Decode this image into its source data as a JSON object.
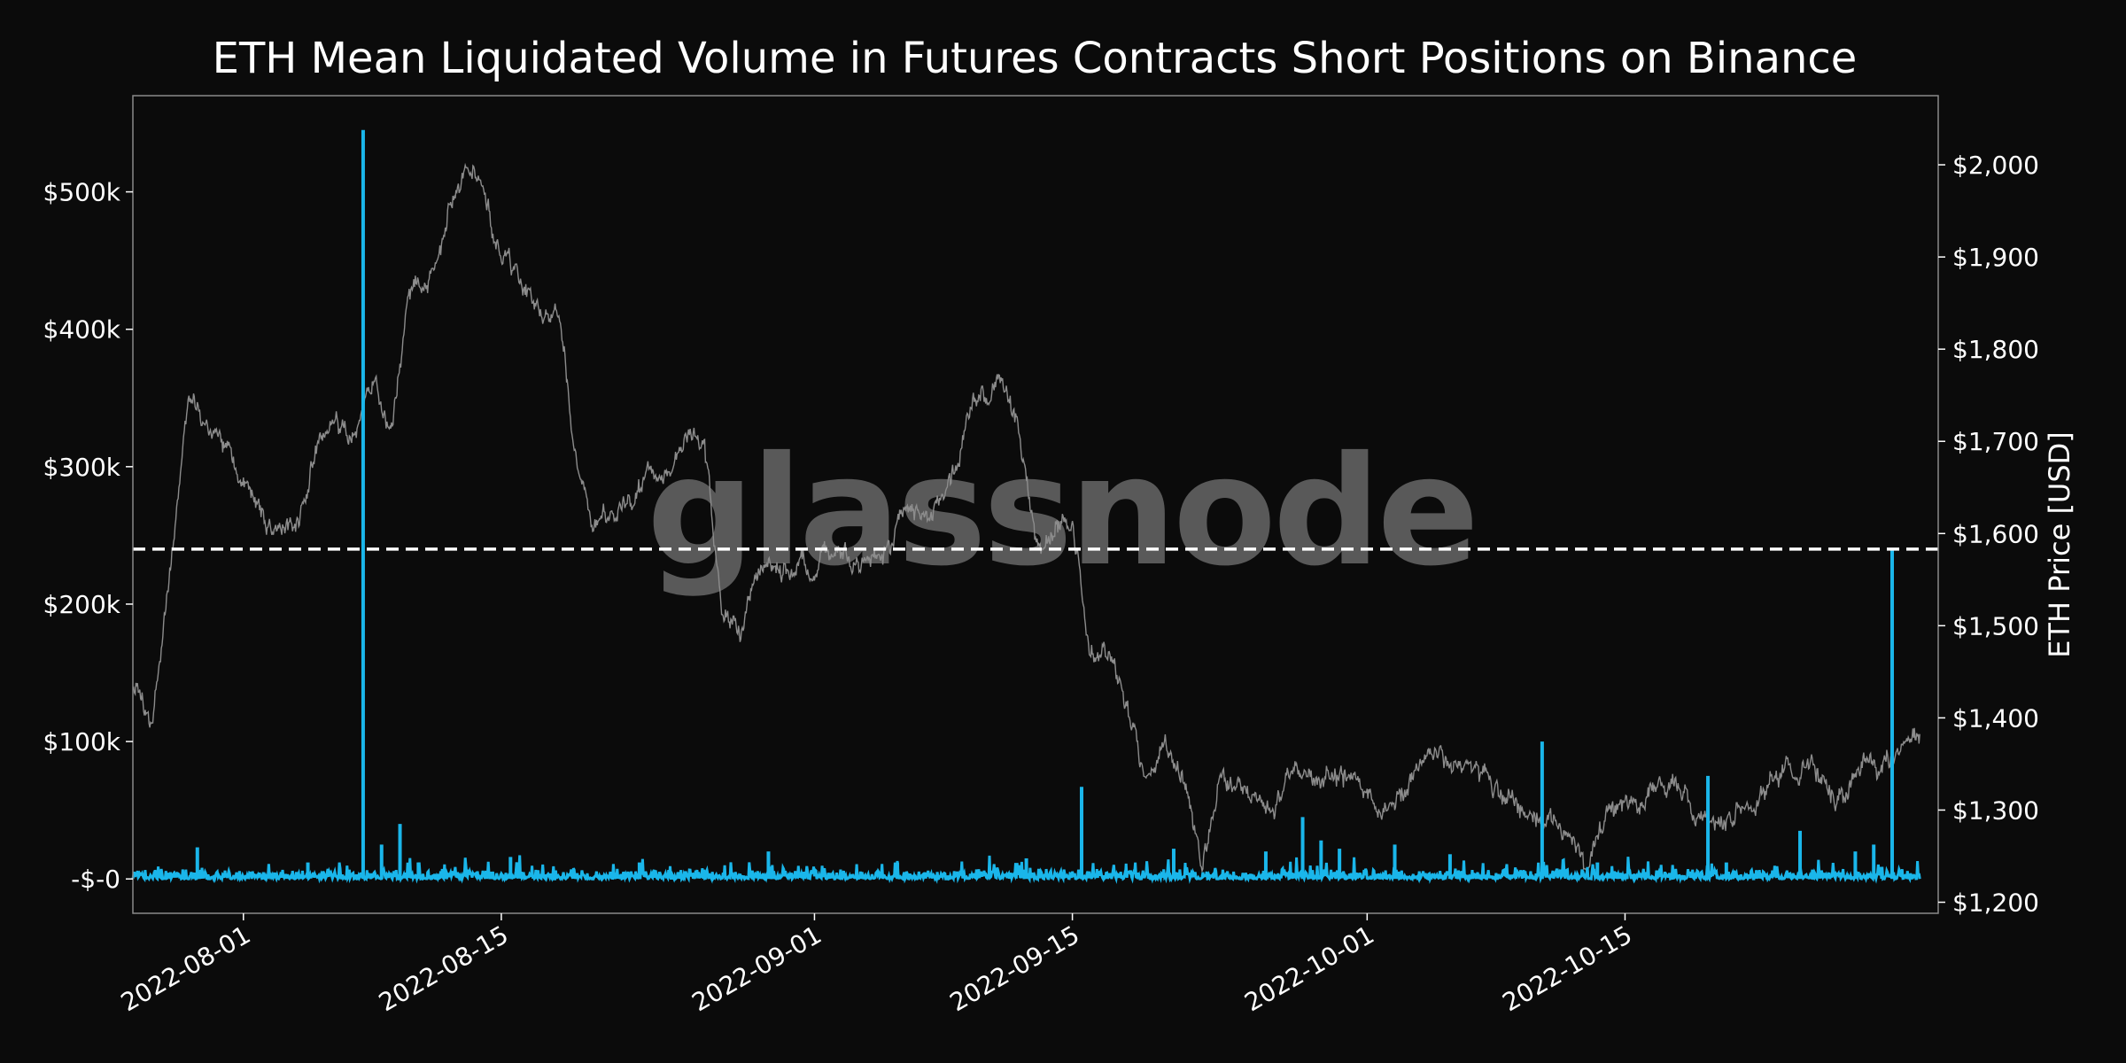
{
  "chart_data": {
    "type": "line",
    "title": "ETH Mean Liquidated Volume in Futures Contracts Short Positions on Binance",
    "watermark": "glassnode",
    "xlabel": "",
    "ylabel_left": "",
    "ylabel_right": "ETH Price [USD]",
    "x_range": [
      "2022-07-26",
      "2022-11-01"
    ],
    "x_ticks": [
      "2022-08-01",
      "2022-08-15",
      "2022-09-01",
      "2022-09-15",
      "2022-10-01",
      "2022-10-15"
    ],
    "y_left_range": [
      -25000,
      570000
    ],
    "y_left_ticks": [
      {
        "value": 0,
        "label": "-$-0"
      },
      {
        "value": 100000,
        "label": "$100k"
      },
      {
        "value": 200000,
        "label": "$200k"
      },
      {
        "value": 300000,
        "label": "$300k"
      },
      {
        "value": 400000,
        "label": "$400k"
      },
      {
        "value": 500000,
        "label": "$500k"
      }
    ],
    "y_right_range": [
      1188,
      2075
    ],
    "y_right_ticks": [
      {
        "value": 1200,
        "label": "$1,200"
      },
      {
        "value": 1300,
        "label": "$1,300"
      },
      {
        "value": 1400,
        "label": "$1,400"
      },
      {
        "value": 1500,
        "label": "$1,500"
      },
      {
        "value": 1600,
        "label": "$1,600"
      },
      {
        "value": 1700,
        "label": "$1,700"
      },
      {
        "value": 1800,
        "label": "$1,800"
      },
      {
        "value": 1900,
        "label": "$1,900"
      },
      {
        "value": 2000,
        "label": "$2,000"
      }
    ],
    "threshold_line": {
      "value": 240000,
      "axis": "left",
      "style": "dashed",
      "color": "#ffffff"
    },
    "series": [
      {
        "axis": "right",
        "color": "#8c8c8c",
        "points": [
          [
            "2022-07-26",
            1440
          ],
          [
            "2022-07-27",
            1385
          ],
          [
            "2022-07-28",
            1560
          ],
          [
            "2022-07-29",
            1740
          ],
          [
            "2022-07-30",
            1720
          ],
          [
            "2022-07-31",
            1690
          ],
          [
            "2022-08-01",
            1650
          ],
          [
            "2022-08-02",
            1620
          ],
          [
            "2022-08-03",
            1600
          ],
          [
            "2022-08-04",
            1615
          ],
          [
            "2022-08-05",
            1690
          ],
          [
            "2022-08-06",
            1715
          ],
          [
            "2022-08-07",
            1700
          ],
          [
            "2022-08-08",
            1770
          ],
          [
            "2022-08-09",
            1700
          ],
          [
            "2022-08-10",
            1855
          ],
          [
            "2022-08-11",
            1880
          ],
          [
            "2022-08-12",
            1940
          ],
          [
            "2022-08-13",
            2000
          ],
          [
            "2022-08-14",
            1980
          ],
          [
            "2022-08-15",
            1900
          ],
          [
            "2022-08-16",
            1875
          ],
          [
            "2022-08-17",
            1840
          ],
          [
            "2022-08-18",
            1845
          ],
          [
            "2022-08-19",
            1690
          ],
          [
            "2022-08-20",
            1610
          ],
          [
            "2022-08-21",
            1620
          ],
          [
            "2022-08-22",
            1625
          ],
          [
            "2022-08-23",
            1665
          ],
          [
            "2022-08-24",
            1660
          ],
          [
            "2022-08-25",
            1695
          ],
          [
            "2022-08-26",
            1700
          ],
          [
            "2022-08-27",
            1520
          ],
          [
            "2022-08-28",
            1490
          ],
          [
            "2022-08-29",
            1550
          ],
          [
            "2022-08-30",
            1560
          ],
          [
            "2022-08-31",
            1555
          ],
          [
            "2022-09-01",
            1575
          ],
          [
            "2022-09-02",
            1580
          ],
          [
            "2022-09-03",
            1565
          ],
          [
            "2022-09-04",
            1570
          ],
          [
            "2022-09-05",
            1580
          ],
          [
            "2022-09-06",
            1630
          ],
          [
            "2022-09-07",
            1610
          ],
          [
            "2022-09-08",
            1635
          ],
          [
            "2022-09-09",
            1710
          ],
          [
            "2022-09-10",
            1740
          ],
          [
            "2022-09-11",
            1770
          ],
          [
            "2022-09-12",
            1720
          ],
          [
            "2022-09-13",
            1600
          ],
          [
            "2022-09-14",
            1600
          ],
          [
            "2022-09-15",
            1610
          ],
          [
            "2022-09-16",
            1470
          ],
          [
            "2022-09-17",
            1460
          ],
          [
            "2022-09-18",
            1420
          ],
          [
            "2022-09-19",
            1330
          ],
          [
            "2022-09-20",
            1370
          ],
          [
            "2022-09-21",
            1340
          ],
          [
            "2022-09-22",
            1250
          ],
          [
            "2022-09-23",
            1330
          ],
          [
            "2022-09-24",
            1330
          ],
          [
            "2022-09-25",
            1310
          ],
          [
            "2022-09-26",
            1300
          ],
          [
            "2022-09-27",
            1350
          ],
          [
            "2022-09-28",
            1340
          ],
          [
            "2022-09-29",
            1330
          ],
          [
            "2022-09-30",
            1340
          ],
          [
            "2022-10-01",
            1315
          ],
          [
            "2022-10-02",
            1295
          ],
          [
            "2022-10-03",
            1320
          ],
          [
            "2022-10-04",
            1350
          ],
          [
            "2022-10-05",
            1360
          ],
          [
            "2022-10-06",
            1350
          ],
          [
            "2022-10-07",
            1340
          ],
          [
            "2022-10-08",
            1320
          ],
          [
            "2022-10-09",
            1320
          ],
          [
            "2022-10-10",
            1295
          ],
          [
            "2022-10-11",
            1285
          ],
          [
            "2022-10-12",
            1290
          ],
          [
            "2022-10-13",
            1230
          ],
          [
            "2022-10-14",
            1300
          ],
          [
            "2022-10-15",
            1300
          ],
          [
            "2022-10-16",
            1310
          ],
          [
            "2022-10-17",
            1330
          ],
          [
            "2022-10-18",
            1320
          ],
          [
            "2022-10-19",
            1290
          ],
          [
            "2022-10-20",
            1280
          ],
          [
            "2022-10-21",
            1295
          ],
          [
            "2022-10-22",
            1310
          ],
          [
            "2022-10-23",
            1330
          ],
          [
            "2022-10-24",
            1345
          ],
          [
            "2022-10-25",
            1350
          ],
          [
            "2022-10-26",
            1310
          ],
          [
            "2022-10-27",
            1320
          ],
          [
            "2022-10-28",
            1345
          ],
          [
            "2022-10-29",
            1345
          ],
          [
            "2022-10-30",
            1360
          ],
          [
            "2022-10-31",
            1380
          ]
        ]
      },
      {
        "axis": "left",
        "color": "#1ab6ea",
        "baseline_noise": 8000,
        "spikes": [
          [
            "2022-07-29",
            23000
          ],
          [
            "2022-08-04",
            12000
          ],
          [
            "2022-08-07",
            545000
          ],
          [
            "2022-08-08",
            25000
          ],
          [
            "2022-08-09",
            40000
          ],
          [
            "2022-08-10",
            12000
          ],
          [
            "2022-08-15",
            16000
          ],
          [
            "2022-08-22",
            12000
          ],
          [
            "2022-08-29",
            20000
          ],
          [
            "2022-09-05",
            12000
          ],
          [
            "2022-09-12",
            15000
          ],
          [
            "2022-09-15",
            67000
          ],
          [
            "2022-09-20",
            22000
          ],
          [
            "2022-09-25",
            20000
          ],
          [
            "2022-09-27",
            45000
          ],
          [
            "2022-09-28",
            28000
          ],
          [
            "2022-09-29",
            22000
          ],
          [
            "2022-10-02",
            25000
          ],
          [
            "2022-10-05",
            18000
          ],
          [
            "2022-10-10",
            100000
          ],
          [
            "2022-10-13",
            12000
          ],
          [
            "2022-10-19",
            75000
          ],
          [
            "2022-10-20",
            12000
          ],
          [
            "2022-10-24",
            35000
          ],
          [
            "2022-10-27",
            20000
          ],
          [
            "2022-10-28",
            25000
          ],
          [
            "2022-10-29",
            240000
          ]
        ]
      }
    ]
  }
}
